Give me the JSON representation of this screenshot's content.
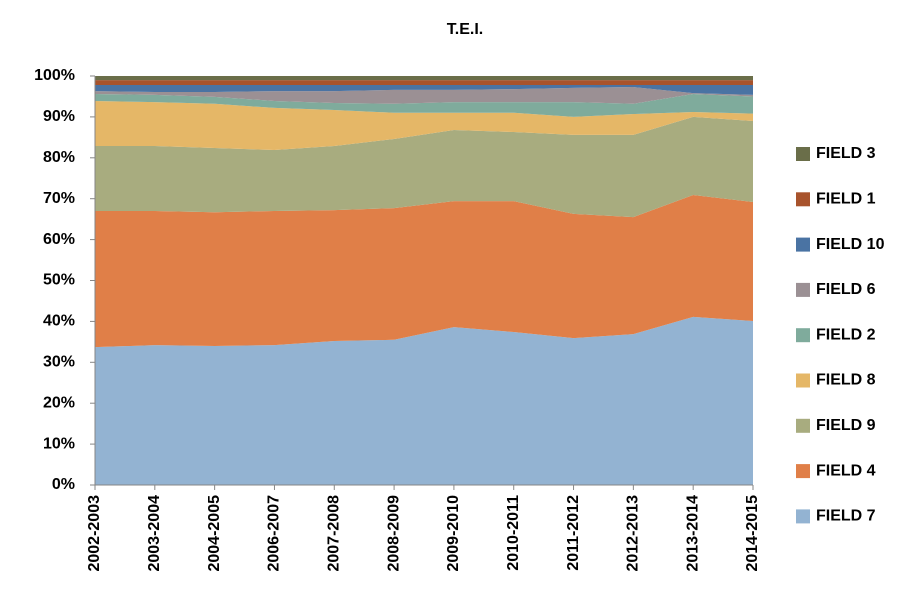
{
  "chart_data": {
    "type": "stacked-area",
    "title": "T.E.I.",
    "categories": [
      "2002-2003",
      "2003-2004",
      "2004-2005",
      "2006-2007",
      "2007-2008",
      "2008-2009",
      "2009-2010",
      "2010-2011",
      "2011-2012",
      "2012-2013",
      "2013-2014",
      "2014-2015"
    ],
    "ylim": [
      0,
      100
    ],
    "yticks": [
      {
        "value": 0,
        "label": "0%"
      },
      {
        "value": 10,
        "label": "10%"
      },
      {
        "value": 20,
        "label": "20%"
      },
      {
        "value": 30,
        "label": "30%"
      },
      {
        "value": 40,
        "label": "40%"
      },
      {
        "value": 50,
        "label": "50%"
      },
      {
        "value": 60,
        "label": "60%"
      },
      {
        "value": 70,
        "label": "70%"
      },
      {
        "value": 80,
        "label": "80%"
      },
      {
        "value": 90,
        "label": "90%"
      },
      {
        "value": 100,
        "label": "100%"
      }
    ],
    "series": [
      {
        "name": "FIELD 7",
        "color": "#93b3d2",
        "values": [
          33.7,
          34.2,
          34.0,
          34.2,
          35.2,
          35.5,
          38.6,
          37.4,
          35.9,
          36.9,
          41.1,
          40.1
        ]
      },
      {
        "name": "FIELD 4",
        "color": "#e07f48",
        "values": [
          33.3,
          32.8,
          32.7,
          32.8,
          32.0,
          32.2,
          30.8,
          32.0,
          30.4,
          28.6,
          29.8,
          29.1
        ]
      },
      {
        "name": "FIELD 9",
        "color": "#a8ac7f",
        "values": [
          15.9,
          15.9,
          15.7,
          14.9,
          15.7,
          16.9,
          17.4,
          16.9,
          19.3,
          20.1,
          19.1,
          19.8
        ]
      },
      {
        "name": "FIELD 8",
        "color": "#e5b767",
        "values": [
          11.0,
          10.7,
          10.8,
          10.3,
          8.8,
          6.4,
          4.2,
          4.7,
          4.4,
          5.1,
          1.2,
          1.8
        ]
      },
      {
        "name": "FIELD 2",
        "color": "#7fab9c",
        "values": [
          1.7,
          1.8,
          1.7,
          1.7,
          1.7,
          2.2,
          2.6,
          2.6,
          3.6,
          2.5,
          4.4,
          4.2
        ]
      },
      {
        "name": "FIELD 6",
        "color": "#9b9094",
        "values": [
          0.7,
          0.7,
          1.2,
          2.4,
          2.9,
          3.4,
          3.0,
          3.2,
          3.5,
          4.1,
          0.2,
          0.4
        ]
      },
      {
        "name": "FIELD 10",
        "color": "#4a73a3",
        "values": [
          1.5,
          1.7,
          1.7,
          1.5,
          1.5,
          1.2,
          1.2,
          1.0,
          0.7,
          0.5,
          2.0,
          2.4
        ]
      },
      {
        "name": "FIELD 1",
        "color": "#a8532c",
        "values": [
          1.2,
          1.2,
          1.2,
          1.2,
          1.2,
          1.2,
          1.2,
          1.2,
          1.2,
          1.2,
          1.2,
          1.2
        ]
      },
      {
        "name": "FIELD 3",
        "color": "#6a6e49",
        "values": [
          1.0,
          1.0,
          1.0,
          1.0,
          1.0,
          1.0,
          1.0,
          1.0,
          1.0,
          1.0,
          1.0,
          1.0
        ]
      }
    ]
  }
}
